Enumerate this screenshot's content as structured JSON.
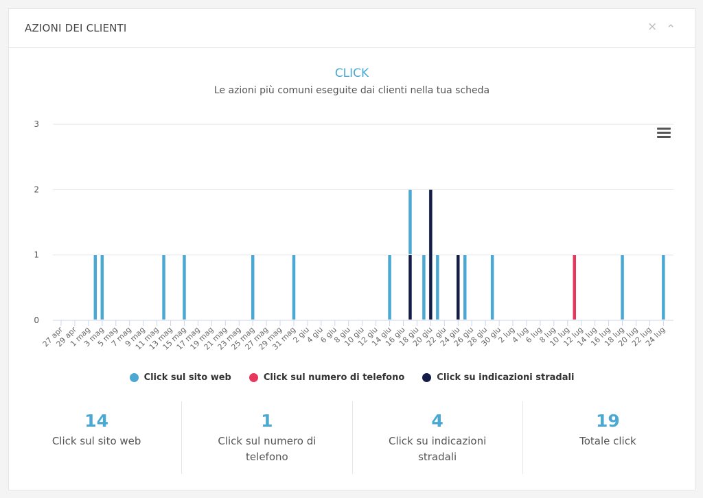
{
  "header": {
    "title": "AZIONI DEI CLIENTI",
    "close_icon": "×",
    "collapse_icon": "⌃"
  },
  "chart_data": {
    "type": "bar",
    "stacked": true,
    "title": "CLICK",
    "subtitle": "Le azioni più comuni eseguite dai clienti nella tua scheda",
    "ylim": [
      0,
      3
    ],
    "yticks": [
      0,
      1,
      2,
      3
    ],
    "grid": true,
    "legend_position": "bottom",
    "x_tick_labels": [
      "27 apr",
      "29 apr",
      "1 mag",
      "3 mag",
      "5 mag",
      "7 mag",
      "9 mag",
      "11 mag",
      "13 mag",
      "15 mag",
      "17 mag",
      "19 mag",
      "21 mag",
      "23 mag",
      "25 mag",
      "27 mag",
      "29 mag",
      "31 mag",
      "2 giu",
      "4 giu",
      "6 giu",
      "8 giu",
      "10 giu",
      "12 giu",
      "14 giu",
      "16 giu",
      "18 giu",
      "20 giu",
      "22 giu",
      "24 giu",
      "26 giu",
      "28 giu",
      "30 giu",
      "2 lug",
      "4 lug",
      "6 lug",
      "8 lug",
      "10 lug",
      "12 lug",
      "14 lug",
      "16 lug",
      "18 lug",
      "20 lug",
      "22 lug",
      "24 lug"
    ],
    "series": [
      {
        "name": "Click su indicazioni stradali",
        "color": "#141c48",
        "points": [
          [
            "17 giu",
            1
          ],
          [
            "20 giu",
            2
          ],
          [
            "24 giu",
            1
          ]
        ]
      },
      {
        "name": "Click sul numero di telefono",
        "color": "#e8365d",
        "points": [
          [
            "11 lug",
            1
          ]
        ]
      },
      {
        "name": "Click sul sito web",
        "color": "#4aa8d3",
        "points": [
          [
            "2 mag",
            1
          ],
          [
            "3 mag",
            1
          ],
          [
            "12 mag",
            1
          ],
          [
            "15 mag",
            1
          ],
          [
            "25 mag",
            1
          ],
          [
            "31 mag",
            1
          ],
          [
            "14 giu",
            1
          ],
          [
            "17 giu",
            1
          ],
          [
            "19 giu",
            1
          ],
          [
            "21 giu",
            1
          ],
          [
            "25 giu",
            1
          ],
          [
            "29 giu",
            1
          ],
          [
            "18 lug",
            1
          ],
          [
            "24 lug",
            1
          ]
        ]
      }
    ]
  },
  "legend": [
    {
      "label": "Click sul sito web",
      "color": "#4aa8d3"
    },
    {
      "label": "Click sul numero di telefono",
      "color": "#e8365d"
    },
    {
      "label": "Click su indicazioni stradali",
      "color": "#141c48"
    }
  ],
  "stats": [
    {
      "value": "14",
      "label": "Click sul sito web"
    },
    {
      "value": "1",
      "label": "Click sul numero di telefono"
    },
    {
      "value": "4",
      "label": "Click su indicazioni stradali"
    },
    {
      "value": "19",
      "label": "Totale click"
    }
  ]
}
